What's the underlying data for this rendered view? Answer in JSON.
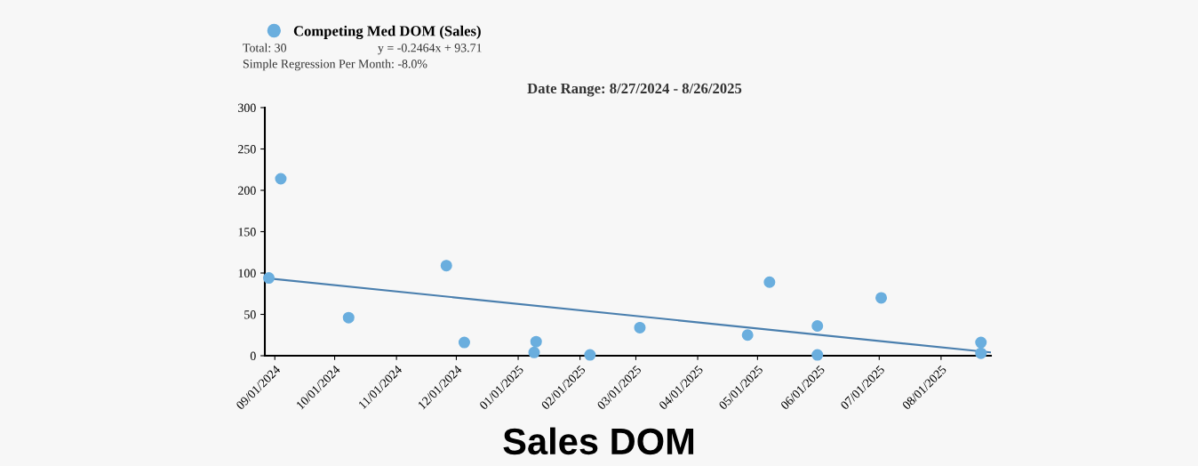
{
  "chart_data": {
    "type": "scatter",
    "title": "Sales DOM",
    "subtitle": "Date Range: 8/27/2024 - 8/26/2025",
    "annotations": [
      "Total: 30",
      "y = -0.2464x + 93.71",
      "Simple Regression Per Month: -8.0%"
    ],
    "series": [
      {
        "name": "Competing Med DOM (Sales)",
        "marker": "circle",
        "color": "#6aaede",
        "x": [
          "2024-08-29",
          "2024-09-04",
          "2024-10-08",
          "2024-11-26",
          "2024-12-05",
          "2025-01-10",
          "2025-01-09",
          "2025-02-06",
          "2025-03-03",
          "2025-04-26",
          "2025-05-07",
          "2025-05-31",
          "2025-05-31",
          "2025-07-02",
          "2025-08-21",
          "2025-08-21"
        ],
        "values": [
          94,
          214,
          46,
          109,
          16,
          17,
          4,
          1,
          34,
          25,
          89,
          36,
          1,
          70,
          16,
          3
        ]
      },
      {
        "type": "line",
        "marker": "none",
        "color": "#4a7fae",
        "x": [
          "2024-08-27",
          "2025-08-26"
        ],
        "values": [
          94,
          4
        ]
      }
    ],
    "xlim": [
      "2024-08-27",
      "2025-08-26"
    ],
    "xticks": [
      {
        "value": "2024-09-01",
        "label": "09/01/2024"
      },
      {
        "value": "2024-10-01",
        "label": "10/01/2024"
      },
      {
        "value": "2024-11-01",
        "label": "11/01/2024"
      },
      {
        "value": "2024-12-01",
        "label": "12/01/2024"
      },
      {
        "value": "2025-01-01",
        "label": "01/01/2025"
      },
      {
        "value": "2025-02-01",
        "label": "02/01/2025"
      },
      {
        "value": "2025-03-01",
        "label": "03/01/2025"
      },
      {
        "value": "2025-04-01",
        "label": "04/01/2025"
      },
      {
        "value": "2025-05-01",
        "label": "05/01/2025"
      },
      {
        "value": "2025-06-01",
        "label": "06/01/2025"
      },
      {
        "value": "2025-07-01",
        "label": "07/01/2025"
      },
      {
        "value": "2025-08-01",
        "label": "08/01/2025"
      }
    ],
    "ylim": [
      0,
      300
    ],
    "yticks": [
      0,
      50,
      100,
      150,
      200,
      250,
      300
    ],
    "grid": false,
    "legend": "top left"
  }
}
